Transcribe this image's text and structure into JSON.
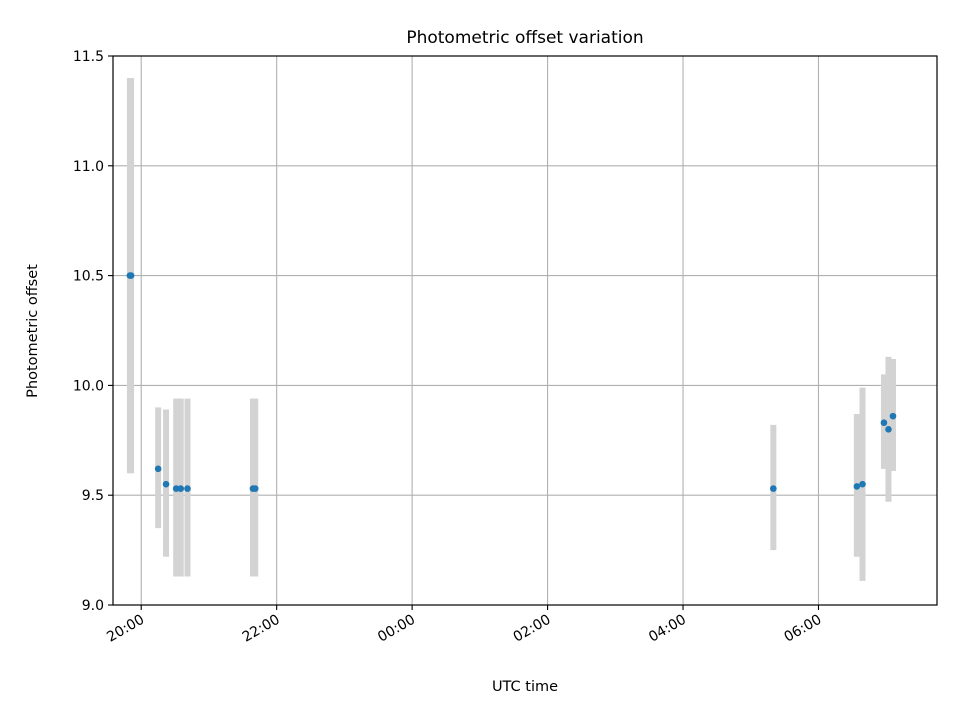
{
  "chart_data": {
    "type": "scatter",
    "title": "Photometric offset variation",
    "xlabel": "UTC time",
    "ylabel": "Photometric offset",
    "xlim": [
      "2024-01-01T19:35",
      "2024-01-02T07:45"
    ],
    "ylim": [
      9.0,
      11.5
    ],
    "x_ticks": [
      {
        "t": "2024-01-01T20:00",
        "label": "20:00"
      },
      {
        "t": "2024-01-01T22:00",
        "label": "22:00"
      },
      {
        "t": "2024-01-02T00:00",
        "label": "00:00"
      },
      {
        "t": "2024-01-02T02:00",
        "label": "02:00"
      },
      {
        "t": "2024-01-02T04:00",
        "label": "04:00"
      },
      {
        "t": "2024-01-02T06:00",
        "label": "06:00"
      }
    ],
    "y_ticks": [
      {
        "v": 9.0,
        "label": "9.0"
      },
      {
        "v": 9.5,
        "label": "9.5"
      },
      {
        "v": 10.0,
        "label": "10.0"
      },
      {
        "v": 10.5,
        "label": "10.5"
      },
      {
        "v": 11.0,
        "label": "11.0"
      },
      {
        "v": 11.5,
        "label": "11.5"
      }
    ],
    "grid": true,
    "point_color": "#1f77b4",
    "errorbar_color": "#d3d3d3",
    "points": [
      {
        "t": "2024-01-01T19:50",
        "y": 10.5,
        "lo": 9.6,
        "hi": 11.4
      },
      {
        "t": "2024-01-01T19:51",
        "y": 10.5,
        "lo": 9.6,
        "hi": 11.4
      },
      {
        "t": "2024-01-01T20:15",
        "y": 9.62,
        "lo": 9.35,
        "hi": 9.9
      },
      {
        "t": "2024-01-01T20:22",
        "y": 9.55,
        "lo": 9.22,
        "hi": 9.89
      },
      {
        "t": "2024-01-01T20:31",
        "y": 9.53,
        "lo": 9.13,
        "hi": 9.94
      },
      {
        "t": "2024-01-01T20:35",
        "y": 9.53,
        "lo": 9.13,
        "hi": 9.94
      },
      {
        "t": "2024-01-01T20:41",
        "y": 9.53,
        "lo": 9.13,
        "hi": 9.94
      },
      {
        "t": "2024-01-01T21:39",
        "y": 9.53,
        "lo": 9.13,
        "hi": 9.94
      },
      {
        "t": "2024-01-01T21:41",
        "y": 9.53,
        "lo": 9.13,
        "hi": 9.94
      },
      {
        "t": "2024-01-02T05:20",
        "y": 9.53,
        "lo": 9.25,
        "hi": 9.82
      },
      {
        "t": "2024-01-02T06:34",
        "y": 9.54,
        "lo": 9.22,
        "hi": 9.87
      },
      {
        "t": "2024-01-02T06:39",
        "y": 9.55,
        "lo": 9.11,
        "hi": 9.99
      },
      {
        "t": "2024-01-02T06:58",
        "y": 9.83,
        "lo": 9.62,
        "hi": 10.05
      },
      {
        "t": "2024-01-02T07:02",
        "y": 9.8,
        "lo": 9.47,
        "hi": 10.13
      },
      {
        "t": "2024-01-02T07:06",
        "y": 9.86,
        "lo": 9.61,
        "hi": 10.12
      }
    ]
  }
}
